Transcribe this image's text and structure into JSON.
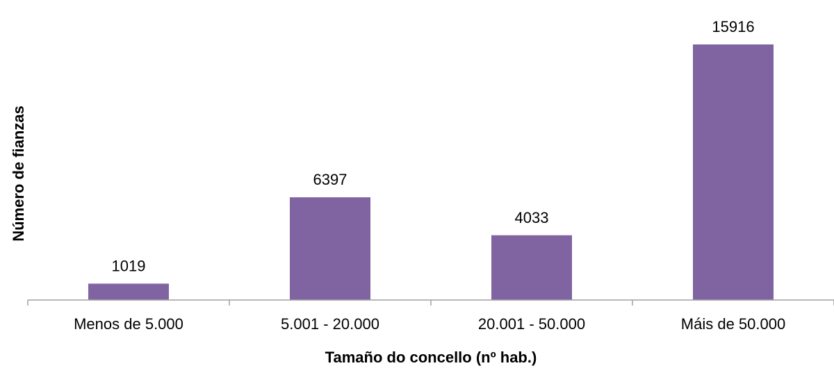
{
  "chart_data": {
    "type": "bar",
    "categories": [
      "Menos de 5.000",
      "5.001 - 20.000",
      "20.001 - 50.000",
      "Máis de 50.000"
    ],
    "values": [
      1019,
      6397,
      4033,
      15916
    ],
    "data_labels": [
      "1019",
      "6397",
      "4033",
      "15916"
    ],
    "xlabel": "Tamaño do concello (nº hab.)",
    "ylabel": "Número de fianzas",
    "ylim": [
      0,
      16500
    ],
    "bar_color": "#8064A2",
    "axis_color": "#A0A0A0",
    "grid": false,
    "legend": "none"
  }
}
